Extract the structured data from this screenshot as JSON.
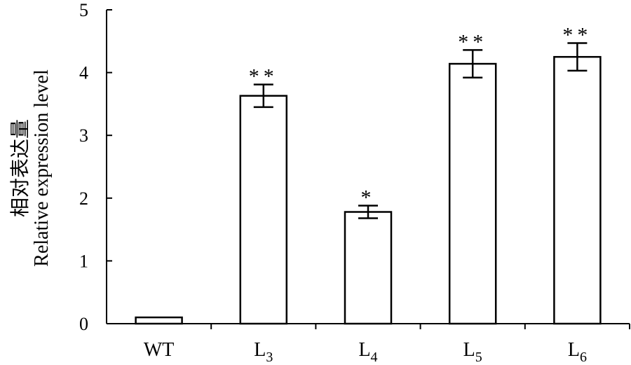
{
  "chart_data": {
    "type": "bar",
    "categories": [
      {
        "base": "WT",
        "sub": ""
      },
      {
        "base": "L",
        "sub": "3"
      },
      {
        "base": "L",
        "sub": "4"
      },
      {
        "base": "L",
        "sub": "5"
      },
      {
        "base": "L",
        "sub": "6"
      }
    ],
    "values": [
      0.1,
      3.63,
      1.78,
      4.14,
      4.25
    ],
    "errors": [
      0.01,
      0.18,
      0.1,
      0.22,
      0.22
    ],
    "significance": [
      "",
      "**",
      "*",
      "**",
      "**"
    ],
    "ylabel_cn": "相对表达量",
    "ylabel_en": "Relative expression level",
    "ylim": [
      0,
      5
    ],
    "yticks": [
      "0",
      "1",
      "2",
      "3",
      "4",
      "5"
    ],
    "grid": false,
    "legend": "none"
  }
}
